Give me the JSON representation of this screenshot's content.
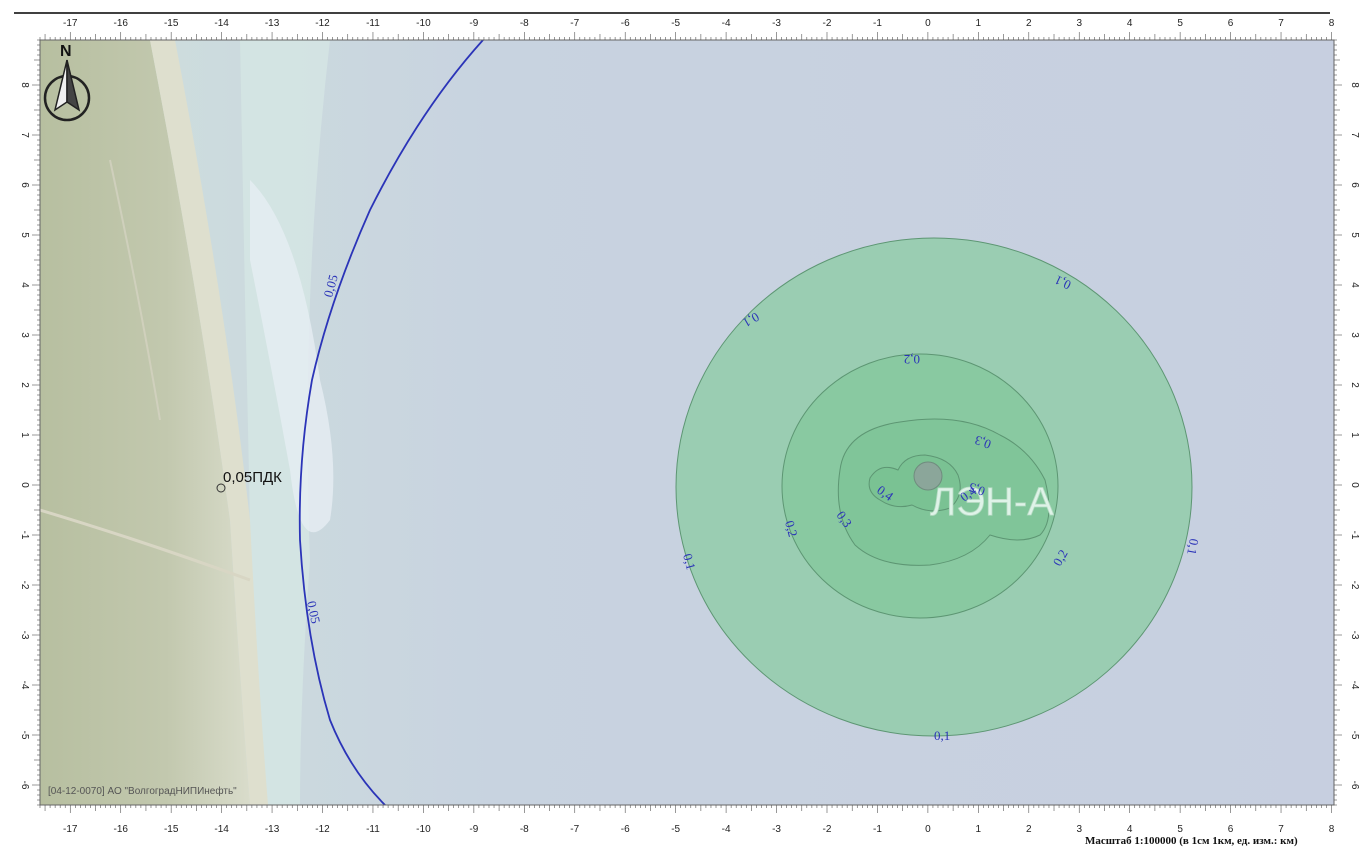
{
  "colors": {
    "sea": "#c9d1e0",
    "land": "#b9c2a4",
    "coast_contour": "#2b34b8",
    "zone_fill": "#8fcca6",
    "zone_stroke": "#5d9673",
    "contour_label": "#2b34b8"
  },
  "north_arrow": {
    "label": "N",
    "icon": "compass-north-arrow-icon"
  },
  "axes": {
    "x_ticks": [
      "-17",
      "-16",
      "-15",
      "-14",
      "-13",
      "-12",
      "-11",
      "-10",
      "-9",
      "-8",
      "-7",
      "-6",
      "-5",
      "-4",
      "-3",
      "-2",
      "-1",
      "0",
      "1",
      "2",
      "3",
      "4",
      "5",
      "6",
      "7",
      "8"
    ],
    "y_ticks": [
      "8",
      "7",
      "6",
      "5",
      "4",
      "3",
      "2",
      "1",
      "0",
      "-1",
      "-2",
      "-3",
      "-4",
      "-5",
      "-6"
    ],
    "x_range": [
      -17.6,
      8.05
    ],
    "y_range": [
      -6.4,
      8.9
    ],
    "units": "km"
  },
  "contours": [
    {
      "level": "0,05",
      "type": "isoline"
    },
    {
      "level": "0,1",
      "type": "zone"
    },
    {
      "level": "0,2",
      "type": "zone"
    },
    {
      "level": "0,3",
      "type": "zone"
    },
    {
      "level": "0,4",
      "type": "zone"
    },
    {
      "level": "0,5",
      "type": "zone"
    }
  ],
  "contour_labels": {
    "iso_top": "0,05",
    "iso_bottom": "0,05",
    "c01_a": "0,1",
    "c01_b": "0,1",
    "c01_c": "0,1",
    "c01_d": "0,1",
    "c01_e": "0,1",
    "c02_a": "0,2",
    "c02_b": "0,2",
    "c02_c": "0,2",
    "c03_a": "0,3",
    "c03_b": "0,3",
    "c04_a": "0,4",
    "c04_b": "0,4",
    "c05_a": "0,5"
  },
  "marker": {
    "label": "0,05ПДК",
    "x": -14.1,
    "y": 0.0
  },
  "facility": {
    "label": "ЛЭН-А"
  },
  "watermark": "[04-12-0070] АО \"ВолгоградНИПИнефть\"",
  "scale": "Масштаб 1:100000 (в 1см 1км, ед. изм.: км)"
}
